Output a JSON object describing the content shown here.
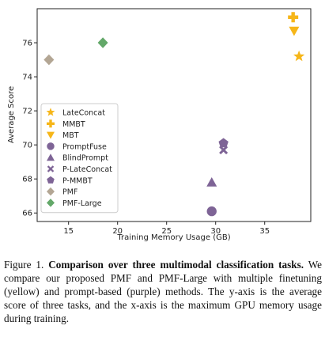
{
  "chart_data": {
    "type": "scatter",
    "title": "",
    "xlabel": "Training Memory Usage (GB)",
    "ylabel": "Average Score",
    "xlim": [
      11.8,
      39.7
    ],
    "ylim": [
      65.5,
      78.0
    ],
    "xticks": [
      "15",
      "20",
      "25",
      "30",
      "35"
    ],
    "xtick_values": [
      15,
      20,
      25,
      30,
      35
    ],
    "yticks": [
      "66",
      "68",
      "70",
      "72",
      "74",
      "76"
    ],
    "ytick_values": [
      66,
      68,
      70,
      72,
      74,
      76
    ],
    "grid": false,
    "legend_position": "center-left",
    "series": [
      {
        "name": "LateConcat",
        "marker": "star",
        "color": "#f6b619",
        "points": [
          {
            "x": 38.5,
            "y": 75.2
          }
        ]
      },
      {
        "name": "MMBT",
        "marker": "plus",
        "color": "#f6b619",
        "points": [
          {
            "x": 37.9,
            "y": 77.5
          }
        ]
      },
      {
        "name": "MBT",
        "marker": "triangle-down",
        "color": "#f6b619",
        "points": [
          {
            "x": 38.0,
            "y": 76.7
          }
        ]
      },
      {
        "name": "PromptFuse",
        "marker": "circle",
        "color": "#7e6496",
        "points": [
          {
            "x": 29.6,
            "y": 66.1
          }
        ]
      },
      {
        "name": "BlindPrompt",
        "marker": "triangle-up",
        "color": "#7e6496",
        "points": [
          {
            "x": 29.6,
            "y": 67.8
          }
        ]
      },
      {
        "name": "P-LateConcat",
        "marker": "x",
        "color": "#7e6496",
        "points": [
          {
            "x": 30.8,
            "y": 69.7
          }
        ]
      },
      {
        "name": "P-MMBT",
        "marker": "pentagon",
        "color": "#7e6496",
        "points": [
          {
            "x": 30.8,
            "y": 70.1
          }
        ]
      },
      {
        "name": "PMF",
        "marker": "diamond",
        "color": "#b3a694",
        "points": [
          {
            "x": 13.0,
            "y": 75.0
          }
        ]
      },
      {
        "name": "PMF-Large",
        "marker": "diamond",
        "color": "#63a869",
        "points": [
          {
            "x": 18.5,
            "y": 76.0
          }
        ]
      }
    ]
  },
  "caption": {
    "prefix": "Figure 1.",
    "bold": "Comparison over three multimodal classification tasks.",
    "text": "We compare our proposed PMF and PMF-Large with multiple finetuning (yellow) and prompt-based (purple) methods. The y-axis is the average score of three tasks, and the x-axis is the maximum GPU memory usage during training."
  }
}
